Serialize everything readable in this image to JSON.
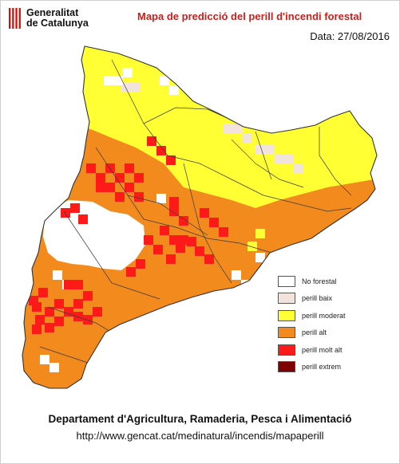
{
  "header": {
    "logo": {
      "line1": "Generalitat",
      "line2": "de Catalunya"
    },
    "title": "Mapa de predicció del perill d'incendi forestal",
    "date": "Data: 27/08/2016"
  },
  "legend": [
    {
      "label": "No forestal",
      "color": "#ffffff",
      "icon": "swatch"
    },
    {
      "label": "perill baix",
      "color": "#f2e4dc",
      "icon": "swatch"
    },
    {
      "label": "perill moderat",
      "color": "#ffff33",
      "icon": "swatch"
    },
    {
      "label": "perill alt",
      "color": "#f28a1e",
      "icon": "swatch"
    },
    {
      "label": "perill molt alt",
      "color": "#ff1a1a",
      "icon": "swatch"
    },
    {
      "label": "perill extrem",
      "color": "#7f0000",
      "icon": "swatch"
    }
  ],
  "map": {
    "colors": {
      "yellow": "#ffff33",
      "orange": "#f28a1e",
      "red": "#ff1a1a",
      "white": "#ffffff",
      "pale": "#f2e4dc",
      "border": "#333333"
    }
  },
  "footer": {
    "department": "Departament d'Agricultura, Ramaderia, Pesca i Alimentació",
    "url": "http://www.gencat.cat/medinatural/incendis/mapaperill"
  }
}
